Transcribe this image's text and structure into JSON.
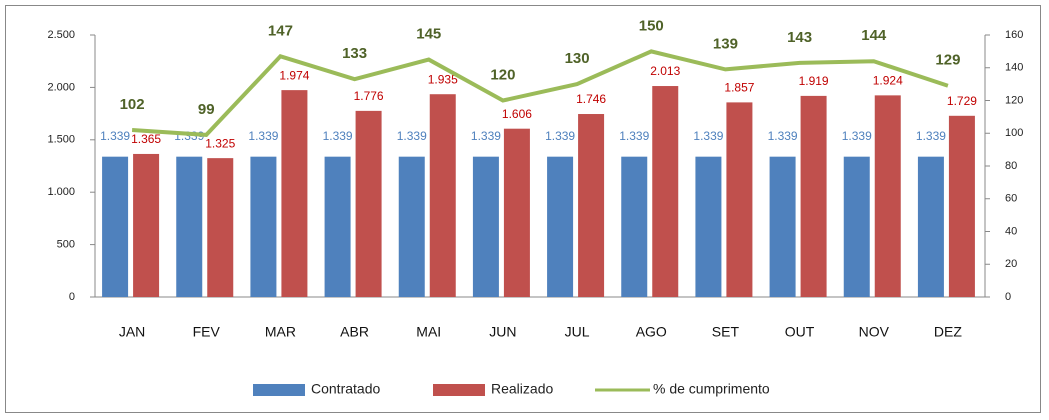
{
  "chart_data": {
    "type": "bar-line",
    "categories": [
      "JAN",
      "FEV",
      "MAR",
      "ABR",
      "MAI",
      "JUN",
      "JUL",
      "AGO",
      "SET",
      "OUT",
      "NOV",
      "DEZ"
    ],
    "series": [
      {
        "name": "Contratado",
        "type": "bar",
        "color": "#4f81bd",
        "label_color": "#4f81bd",
        "values": [
          1339,
          1339,
          1339,
          1339,
          1339,
          1339,
          1339,
          1339,
          1339,
          1339,
          1339,
          1339
        ],
        "value_labels": [
          "1.339",
          "1.339",
          "1.339",
          "1.339",
          "1.339",
          "1.339",
          "1.339",
          "1.339",
          "1.339",
          "1.339",
          "1.339",
          "1.339"
        ]
      },
      {
        "name": "Realizado",
        "type": "bar",
        "color": "#c0504d",
        "label_color": "#c00000",
        "values": [
          1365,
          1325,
          1974,
          1776,
          1935,
          1606,
          1746,
          2013,
          1857,
          1919,
          1924,
          1729
        ],
        "value_labels": [
          "1.365",
          "1.325",
          "1.974",
          "1.776",
          "1.935",
          "1.606",
          "1.746",
          "2.013",
          "1.857",
          "1.919",
          "1.924",
          "1.729"
        ]
      },
      {
        "name": "% de cumprimento",
        "type": "line",
        "axis": "y2",
        "color": "#9bbb59",
        "label_color": "#4f6228",
        "values": [
          102,
          99,
          147,
          133,
          145,
          120,
          130,
          150,
          139,
          143,
          144,
          129
        ]
      }
    ],
    "ylim": [
      0,
      2500
    ],
    "yticks": [
      0,
      500,
      {
        "value": 1000,
        "label": "1.000"
      },
      {
        "value": 1500,
        "label": "1.500"
      },
      {
        "value": 2000,
        "label": "2.000"
      },
      {
        "value": 2500,
        "label": "2.500"
      }
    ],
    "y2lim": [
      0,
      160
    ],
    "y2ticks": [
      0,
      20,
      40,
      60,
      80,
      100,
      120,
      140,
      160
    ],
    "legend": "bottom"
  }
}
